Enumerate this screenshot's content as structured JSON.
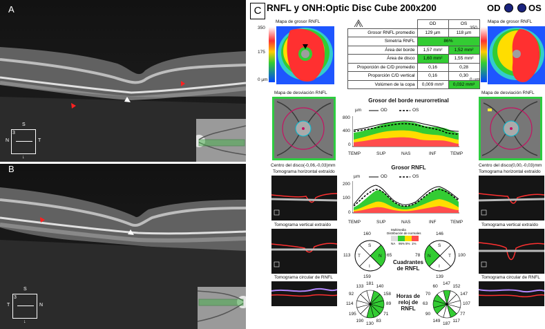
{
  "panels": {
    "a": "A",
    "b": "B",
    "c": "C"
  },
  "scan_a": {
    "axis_s": "S",
    "axis_n": "N",
    "axis_t": "T",
    "index": "3",
    "arrow": "↓"
  },
  "scan_b": {
    "axis_s": "S",
    "axis_t": "T",
    "axis_n": "N",
    "index": "3",
    "arrow": "↓"
  },
  "report": {
    "title": "RNFL y ONH:Optic Disc Cube 200x200",
    "od": "OD",
    "os": "OS"
  },
  "maps": {
    "thickness_label": "Mapa de grosor RNFL",
    "scale_top": "350",
    "scale_mid": "175",
    "scale_bottom": "0 µm",
    "deviation_label": "Mapa de desviación RNFL",
    "center_od": "Centro del disco(-0,06,-0,03)mm",
    "center_os": "Centro del disco(0,00,-0,03)mm",
    "tomo_h": "Tomograma horizontal extraído",
    "tomo_v": "Tomograma vertical extraído",
    "tomo_c": "Tomograma circular de RNFL"
  },
  "metrics": {
    "header": [
      "",
      "OD",
      "OS"
    ],
    "rows": [
      {
        "label": "Grosor RNFL promedio",
        "od": "129 µm",
        "os": "118 µm"
      },
      {
        "label": "Simetría RNFL",
        "span": "86%"
      },
      {
        "label": "Área del borde",
        "od": "1,57 mm²",
        "os": "1,52 mm²"
      },
      {
        "label": "Área de disco",
        "od": "1,60 mm²",
        "os": "1,55 mm²"
      },
      {
        "label": "Proporción de C/D promedio",
        "od": "0,16",
        "os": "0,28"
      },
      {
        "label": "Proporción C/D vertical",
        "od": "0,16",
        "os": "0,30"
      },
      {
        "label": "Volúmen de la copa",
        "od": "0,009 mm³",
        "os": "0,032 mm³"
      }
    ]
  },
  "charts": {
    "rim": {
      "title": "Grosor del borde neurorretinal",
      "unit": "µm",
      "legend_od": "OD",
      "legend_os": "OS",
      "yticks": [
        "800",
        "400",
        "0"
      ],
      "xticks": [
        "TEMP",
        "SUP",
        "NAS",
        "INF",
        "TEMP"
      ]
    },
    "rnfl": {
      "title": "Grosor RNFL",
      "unit": "µm",
      "legend_od": "OD",
      "legend_os": "OS",
      "yticks": [
        "200",
        "100",
        "0"
      ],
      "xticks": [
        "TEMP",
        "SUP",
        "NAS",
        "INF",
        "TEMP"
      ]
    }
  },
  "quadrants": {
    "title_line1": "Cuadrantes",
    "title_line2": "de RNFL",
    "od": {
      "S": "160",
      "T": "113",
      "N": "65",
      "I": "159"
    },
    "os": {
      "S": "146",
      "T": "78",
      "N": "100",
      "I": "139"
    },
    "letters": {
      "s": "S",
      "t": "T",
      "n": "N",
      "i": "I"
    },
    "normal_legend": {
      "title1": "Multimedia",
      "title2": "Distribución de normales",
      "ticks": [
        "NA",
        "95%",
        "5%",
        "1%"
      ]
    }
  },
  "clock": {
    "title_line1": "Horas de",
    "title_line2": "reloj de",
    "title_line3": "RNFL",
    "od": [
      "140",
      "158",
      "89",
      "71",
      "83",
      "130",
      "190",
      "195",
      "114",
      "92",
      "133",
      "181"
    ],
    "os": [
      "152",
      "147",
      "107",
      "77",
      "117",
      "187",
      "149",
      "90",
      "63",
      "70",
      "60",
      "147"
    ]
  }
}
